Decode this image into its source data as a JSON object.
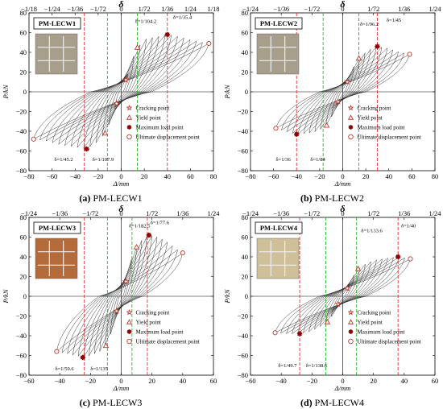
{
  "chart_data": [
    {
      "id": "a",
      "type": "line",
      "caption_letter": "(a)",
      "caption_name": "PM-LECW1",
      "specimen_label": "PM-LECW1",
      "xlabel": "Δ/mm",
      "ylabel": "P/kN",
      "top_axis_label": "δ",
      "xlim": [
        -80,
        80
      ],
      "ylim": [
        -80,
        80
      ],
      "x_ticks": [
        "−80",
        "−60",
        "−40",
        "−20",
        "0",
        "20",
        "40",
        "60",
        "80"
      ],
      "y_ticks": [
        "80",
        "60",
        "40",
        "20",
        "0",
        "−20",
        "−40",
        "−60",
        "−80"
      ],
      "top_ticks": [
        "−1/18",
        "−1/24",
        "−1/36",
        "−1/72",
        "0",
        "1/72",
        "1/36",
        "1/24",
        "1/18"
      ],
      "annotations": [
        {
          "text": "δ=1/104.2",
          "x": 12,
          "y": 70
        },
        {
          "text": "δ=1/35.4",
          "x": 45,
          "y": 74
        },
        {
          "text": "δ=1/45.2",
          "x": -58,
          "y": -70
        },
        {
          "text": "δ=1/107.9",
          "x": -25,
          "y": -70
        }
      ],
      "red_lines": [
        -32,
        40
      ],
      "green_lines": [
        -12,
        14
      ],
      "envelope_pos": [
        [
          0,
          0
        ],
        [
          4,
          12
        ],
        [
          8,
          28
        ],
        [
          14,
          45
        ],
        [
          22,
          54
        ],
        [
          32,
          56
        ],
        [
          40,
          58
        ],
        [
          50,
          56
        ],
        [
          62,
          52
        ],
        [
          76,
          49
        ]
      ],
      "envelope_neg": [
        [
          0,
          0
        ],
        [
          -4,
          -12
        ],
        [
          -8,
          -26
        ],
        [
          -14,
          -42
        ],
        [
          -22,
          -52
        ],
        [
          -30,
          -58
        ],
        [
          -40,
          -56
        ],
        [
          -52,
          -54
        ],
        [
          -64,
          -50
        ],
        [
          -76,
          -48
        ]
      ],
      "loops": 14,
      "legend": [
        "Cracking point",
        "Yield point",
        "Maximum load point",
        "Ultimate displacement point"
      ]
    },
    {
      "id": "b",
      "type": "line",
      "caption_letter": "(b)",
      "caption_name": "PM-LECW2",
      "specimen_label": "PM-LECW2",
      "xlabel": "Δ/mm",
      "ylabel": "P/kN",
      "top_axis_label": "δ",
      "xlim": [
        -80,
        80
      ],
      "ylim": [
        -80,
        80
      ],
      "x_ticks": [
        "−80",
        "−60",
        "−40",
        "−20",
        "0",
        "20",
        "40",
        "60",
        "80"
      ],
      "y_ticks": [
        "80",
        "60",
        "40",
        "20",
        "0",
        "−20",
        "−40",
        "−60",
        "−80"
      ],
      "top_ticks": [
        "−1/24",
        "−1/36",
        "−1/72",
        "0",
        "1/72",
        "1/36",
        "1/24"
      ],
      "annotations": [
        {
          "text": "δ=1/96.2",
          "x": 15,
          "y": 67
        },
        {
          "text": "δ=1/45",
          "x": 38,
          "y": 71
        },
        {
          "text": "δ=1/36",
          "x": -58,
          "y": -70
        },
        {
          "text": "δ=1/84",
          "x": -28,
          "y": -70
        }
      ],
      "red_lines": [
        -40,
        30
      ],
      "green_lines": [
        -17,
        14
      ],
      "envelope_pos": [
        [
          0,
          0
        ],
        [
          4,
          10
        ],
        [
          8,
          22
        ],
        [
          14,
          34
        ],
        [
          22,
          42
        ],
        [
          30,
          46
        ],
        [
          40,
          44
        ],
        [
          50,
          40
        ],
        [
          58,
          38
        ]
      ],
      "envelope_neg": [
        [
          0,
          0
        ],
        [
          -4,
          -10
        ],
        [
          -8,
          -22
        ],
        [
          -14,
          -34
        ],
        [
          -22,
          -40
        ],
        [
          -30,
          -42
        ],
        [
          -40,
          -43
        ],
        [
          -50,
          -40
        ],
        [
          -58,
          -37
        ]
      ],
      "loops": 12,
      "legend": [
        "Cracking point",
        "Yield point",
        "Maximum load point",
        "Ultimate displacement point"
      ]
    },
    {
      "id": "c",
      "type": "line",
      "caption_letter": "(c)",
      "caption_name": "PM-LECW3",
      "specimen_label": "PM-LECW3",
      "xlabel": "Δ/mm",
      "ylabel": "P/kN",
      "top_axis_label": "δ",
      "xlim": [
        -60,
        60
      ],
      "ylim": [
        -80,
        80
      ],
      "x_ticks": [
        "−60",
        "−40",
        "−20",
        "0",
        "20",
        "40",
        "60"
      ],
      "y_ticks": [
        "80",
        "60",
        "40",
        "20",
        "0",
        "−20",
        "−40",
        "−60",
        "−80"
      ],
      "top_ticks": [
        "−1/24",
        "−1/36",
        "−1/72",
        "0",
        "1/72",
        "1/36",
        "1/24"
      ],
      "annotations": [
        {
          "text": "δ=1/182.5",
          "x": 5,
          "y": 70
        },
        {
          "text": "δ=1/77.6",
          "x": 19,
          "y": 73
        },
        {
          "text": "δ=1/59.6",
          "x": -43,
          "y": -75
        },
        {
          "text": "δ=1/135",
          "x": -20,
          "y": -75
        }
      ],
      "red_lines": [
        -24,
        17
      ],
      "green_lines": [
        -9,
        7
      ],
      "envelope_pos": [
        [
          0,
          0
        ],
        [
          3,
          15
        ],
        [
          6,
          35
        ],
        [
          10,
          50
        ],
        [
          14,
          58
        ],
        [
          18,
          62
        ],
        [
          24,
          60
        ],
        [
          30,
          55
        ],
        [
          36,
          48
        ],
        [
          40,
          44
        ]
      ],
      "envelope_neg": [
        [
          0,
          0
        ],
        [
          -3,
          -15
        ],
        [
          -6,
          -35
        ],
        [
          -10,
          -50
        ],
        [
          -14,
          -56
        ],
        [
          -20,
          -60
        ],
        [
          -25,
          -62
        ],
        [
          -30,
          -60
        ],
        [
          -36,
          -58
        ],
        [
          -42,
          -56
        ]
      ],
      "loops": 12,
      "legend": [
        "Cracking point",
        "Yield point",
        "Maximum load point",
        "Ultimate displacement point"
      ]
    },
    {
      "id": "d",
      "type": "line",
      "caption_letter": "(d)",
      "caption_name": "PM-LECW4",
      "specimen_label": "PM-LECW4",
      "xlabel": "Δ/mm",
      "ylabel": "P/kN",
      "top_axis_label": "δ",
      "xlim": [
        -60,
        60
      ],
      "ylim": [
        -80,
        80
      ],
      "x_ticks": [
        "−60",
        "−40",
        "−20",
        "0",
        "20",
        "40",
        "60"
      ],
      "y_ticks": [
        "80",
        "60",
        "40",
        "20",
        "0",
        "−20",
        "−40",
        "−60",
        "−80"
      ],
      "top_ticks": [
        "−1/24",
        "−1/36",
        "−1/72",
        "0",
        "1/72",
        "1/36",
        "1/24"
      ],
      "annotations": [
        {
          "text": "δ=1/133.6",
          "x": 12,
          "y": 65
        },
        {
          "text": "δ=1/40",
          "x": 38,
          "y": 70
        },
        {
          "text": "δ=1/49.7",
          "x": -42,
          "y": -72
        },
        {
          "text": "δ=1/138.6",
          "x": -24,
          "y": -72
        }
      ],
      "red_lines": [
        -28,
        36
      ],
      "green_lines": [
        -11,
        9
      ],
      "envelope_pos": [
        [
          0,
          0
        ],
        [
          3,
          8
        ],
        [
          6,
          18
        ],
        [
          10,
          28
        ],
        [
          16,
          34
        ],
        [
          22,
          37
        ],
        [
          30,
          39
        ],
        [
          36,
          40
        ],
        [
          44,
          38
        ]
      ],
      "envelope_neg": [
        [
          0,
          0
        ],
        [
          -3,
          -8
        ],
        [
          -6,
          -18
        ],
        [
          -10,
          -26
        ],
        [
          -16,
          -32
        ],
        [
          -22,
          -36
        ],
        [
          -28,
          -38
        ],
        [
          -36,
          -38
        ],
        [
          -44,
          -37
        ]
      ],
      "loops": 12,
      "legend": [
        "Cracking point",
        "Yield point",
        "Maximum load point",
        "Ultimate displacement point"
      ]
    }
  ]
}
